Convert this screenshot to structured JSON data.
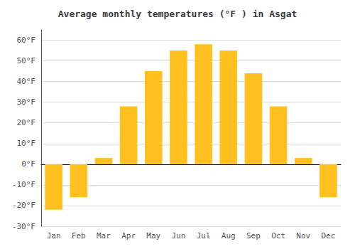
{
  "chart_data": {
    "type": "bar",
    "title": "Average monthly temperatures (°F ) in Asgat",
    "categories": [
      "Jan",
      "Feb",
      "Mar",
      "Apr",
      "May",
      "Jun",
      "Jul",
      "Aug",
      "Sep",
      "Oct",
      "Nov",
      "Dec"
    ],
    "values": [
      -22,
      -16,
      3,
      28,
      45,
      55,
      58,
      55,
      44,
      28,
      3,
      -16
    ],
    "color": "#FFC020",
    "ylim": [
      -30,
      65
    ],
    "yticks": [
      {
        "value": -30,
        "label": "-30°F"
      },
      {
        "value": -20,
        "label": "-20°F"
      },
      {
        "value": -10,
        "label": "-10°F"
      },
      {
        "value": 0,
        "label": "0°F"
      },
      {
        "value": 10,
        "label": "10°F"
      },
      {
        "value": 20,
        "label": "20°F"
      },
      {
        "value": 30,
        "label": "30°F"
      },
      {
        "value": 40,
        "label": "40°F"
      },
      {
        "value": 50,
        "label": "50°F"
      },
      {
        "value": 60,
        "label": "60°F"
      }
    ],
    "grid": true
  }
}
